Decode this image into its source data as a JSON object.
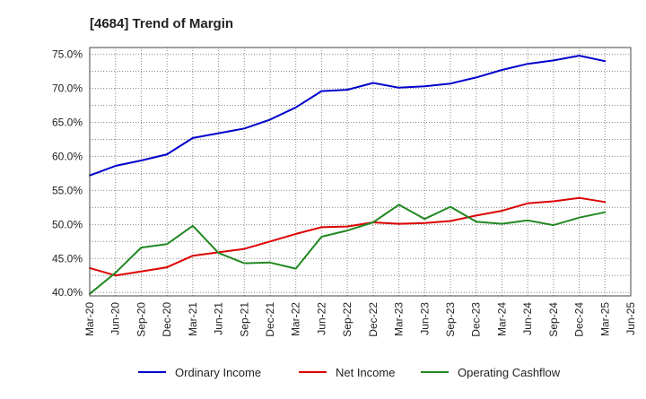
{
  "chart_data": {
    "type": "line",
    "title": "[4684]  Trend of Margin",
    "categories": [
      "Mar-20",
      "Jun-20",
      "Sep-20",
      "Dec-20",
      "Mar-21",
      "Jun-21",
      "Sep-21",
      "Dec-21",
      "Mar-22",
      "Jun-22",
      "Sep-22",
      "Dec-22",
      "Mar-23",
      "Jun-23",
      "Sep-23",
      "Dec-23",
      "Mar-24",
      "Jun-24",
      "Sep-24",
      "Dec-24",
      "Mar-25",
      "Jun-25"
    ],
    "ylim": [
      39.5,
      76.0
    ],
    "yticks": [
      40.0,
      45.0,
      50.0,
      55.0,
      60.0,
      65.0,
      70.0,
      75.0
    ],
    "ytick_labels": [
      "40.0%",
      "45.0%",
      "50.0%",
      "55.0%",
      "60.0%",
      "65.0%",
      "70.0%",
      "75.0%"
    ],
    "grid": true,
    "legend_position": "bottom",
    "series": [
      {
        "name": "Ordinary Income",
        "color": "#0000cc",
        "values": [
          57.2,
          58.6,
          59.4,
          60.3,
          62.7,
          63.4,
          64.1,
          65.4,
          67.2,
          69.6,
          69.8,
          70.8,
          70.1,
          70.3,
          70.7,
          71.6,
          72.7,
          73.6,
          74.1,
          74.8,
          74.0,
          null
        ]
      },
      {
        "name": "Net Income",
        "color": "#dd0000",
        "values": [
          43.6,
          42.5,
          43.1,
          43.7,
          45.4,
          45.9,
          46.4,
          47.5,
          48.6,
          49.6,
          49.7,
          50.3,
          50.1,
          50.2,
          50.5,
          51.3,
          52.0,
          53.1,
          53.4,
          53.9,
          53.3,
          null
        ]
      },
      {
        "name": "Operating Cashflow",
        "color": "#228822",
        "values": [
          39.8,
          42.9,
          46.6,
          47.1,
          49.8,
          45.8,
          44.3,
          44.4,
          43.5,
          48.2,
          49.1,
          50.3,
          52.9,
          50.8,
          52.6,
          50.4,
          50.1,
          50.6,
          49.9,
          51.0,
          51.8,
          null
        ]
      }
    ]
  }
}
